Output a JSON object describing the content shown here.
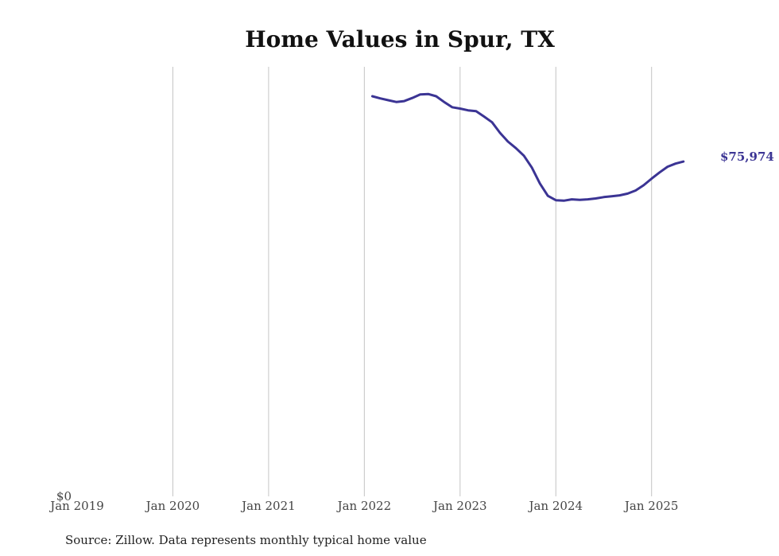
{
  "chart_data": {
    "type": "line",
    "title": "Home Values in Spur, TX",
    "source": "Source: Zillow. Data represents monthly typical home value",
    "x_ticks": [
      "Jan 2019",
      "Jan 2020",
      "Jan 2021",
      "Jan 2022",
      "Jan 2023",
      "Jan 2024",
      "Jan 2025"
    ],
    "x_range": [
      "2019-01",
      "2025-09"
    ],
    "y_ticks": [
      "$0"
    ],
    "ylim": [
      0,
      100000
    ],
    "grid": "vertical",
    "end_label": "$75,974",
    "line_color": "#3b3494",
    "series": [
      {
        "x": [
          "2022-02",
          "2022-03",
          "2022-04",
          "2022-05",
          "2022-06",
          "2022-07",
          "2022-08",
          "2022-09",
          "2022-10",
          "2022-11",
          "2022-12",
          "2023-01",
          "2023-02",
          "2023-03",
          "2023-04",
          "2023-05",
          "2023-06",
          "2023-07",
          "2023-08",
          "2023-09",
          "2023-10",
          "2023-11",
          "2023-12",
          "2024-01",
          "2024-02",
          "2024-03",
          "2024-04",
          "2024-05",
          "2024-06",
          "2024-07",
          "2024-08",
          "2024-09",
          "2024-10",
          "2024-11",
          "2024-12",
          "2025-01",
          "2025-02",
          "2025-03",
          "2025-04",
          "2025-05"
        ],
        "values": [
          90800,
          90300,
          89900,
          89500,
          89700,
          90400,
          91200,
          91300,
          90800,
          89500,
          88300,
          88000,
          87600,
          87400,
          86200,
          84900,
          82500,
          80500,
          79000,
          77300,
          74600,
          71000,
          68200,
          67200,
          67100,
          67400,
          67300,
          67400,
          67600,
          67900,
          68100,
          68300,
          68700,
          69400,
          70600,
          72100,
          73500,
          74800,
          75500,
          75974
        ]
      }
    ]
  }
}
